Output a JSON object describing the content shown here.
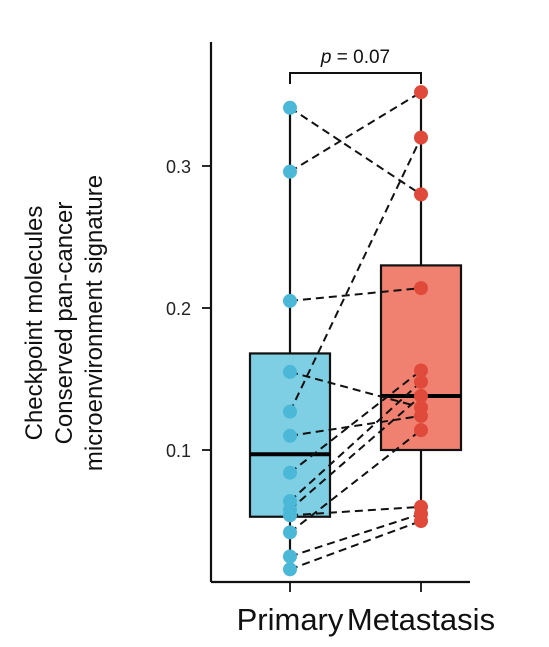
{
  "chart_data": {
    "type": "box",
    "categories": [
      "Primary",
      "Metastasis"
    ],
    "ylabel_lines": [
      "Checkpoint molecules",
      "Conserved pan-cancer",
      "microenvironment signature"
    ],
    "yticks": [
      0.1,
      0.2,
      0.3
    ],
    "ytick_labels": [
      "0.1",
      "0.2",
      "0.3"
    ],
    "ylim": [
      0.0,
      0.37
    ],
    "annotation": {
      "p_symbol": "p",
      "text": " = 0.07"
    },
    "colors": {
      "Primary": "#7ecfe3",
      "Metastasis": "#f08070",
      "Primary_point": "#4bb8d8",
      "Metastasis_point": "#e04a3a"
    },
    "boxes": [
      {
        "category": "Primary",
        "q1": 0.053,
        "median": 0.097,
        "q3": 0.168,
        "whisker_low": 0.016,
        "whisker_high": 0.341
      },
      {
        "category": "Metastasis",
        "q1": 0.1,
        "median": 0.138,
        "q3": 0.23,
        "whisker_low": 0.05,
        "whisker_high": 0.352
      }
    ],
    "pairs": [
      {
        "primary": 0.341,
        "metastasis": 0.28
      },
      {
        "primary": 0.296,
        "metastasis": 0.352
      },
      {
        "primary": 0.205,
        "metastasis": 0.214
      },
      {
        "primary": 0.155,
        "metastasis": 0.13
      },
      {
        "primary": 0.127,
        "metastasis": 0.32
      },
      {
        "primary": 0.11,
        "metastasis": 0.124
      },
      {
        "primary": 0.084,
        "metastasis": 0.156
      },
      {
        "primary": 0.064,
        "metastasis": 0.148
      },
      {
        "primary": 0.058,
        "metastasis": 0.138
      },
      {
        "primary": 0.054,
        "metastasis": 0.06
      },
      {
        "primary": 0.042,
        "metastasis": 0.114
      },
      {
        "primary": 0.025,
        "metastasis": 0.055
      },
      {
        "primary": 0.016,
        "metastasis": 0.05
      }
    ]
  }
}
